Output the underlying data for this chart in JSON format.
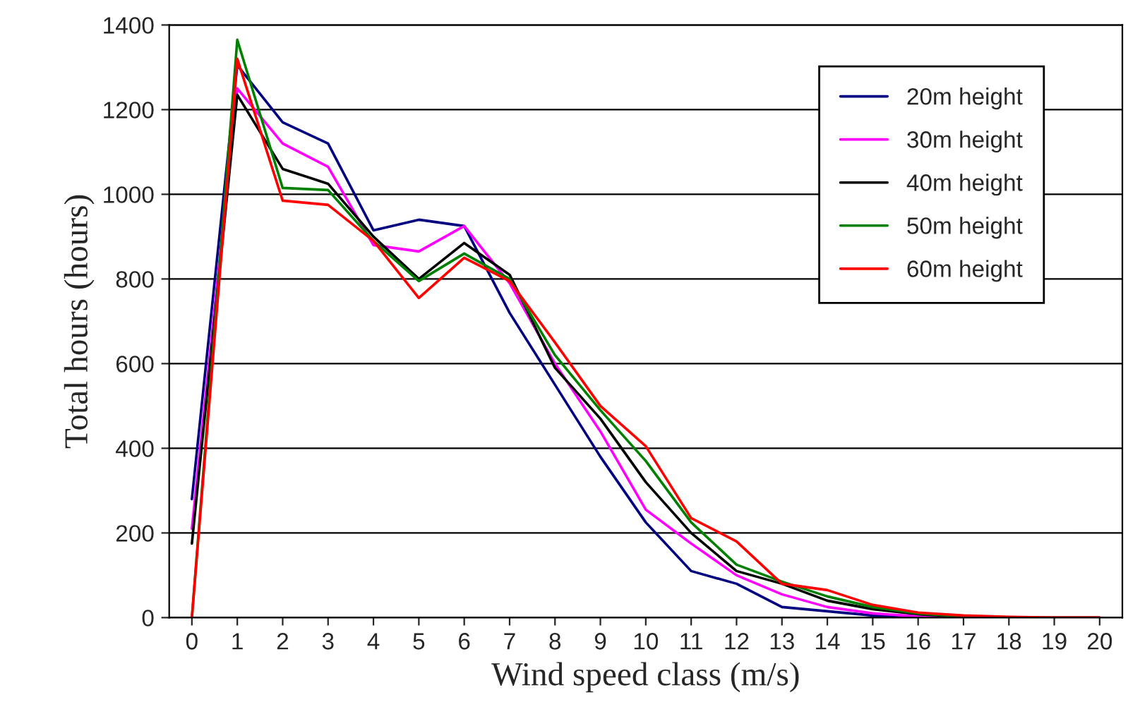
{
  "chart_data": {
    "type": "line",
    "xlabel": "Wind speed class (m/s)",
    "ylabel": "Total hours (hours)",
    "categories": [
      "0",
      "1",
      "2",
      "3",
      "4",
      "5",
      "6",
      "7",
      "8",
      "9",
      "10",
      "11",
      "12",
      "13",
      "14",
      "15",
      "16",
      "17",
      "18",
      "19",
      "20"
    ],
    "series": [
      {
        "name": "20m height",
        "color": "#000080",
        "values": [
          280,
          1305,
          1170,
          1120,
          915,
          940,
          925,
          720,
          550,
          380,
          225,
          110,
          80,
          25,
          15,
          5,
          0,
          0,
          null,
          null,
          null
        ]
      },
      {
        "name": "30m height",
        "color": "#ff00ff",
        "values": [
          210,
          1250,
          1120,
          1065,
          880,
          865,
          925,
          790,
          600,
          440,
          255,
          175,
          100,
          55,
          25,
          10,
          3,
          0,
          null,
          null,
          null
        ]
      },
      {
        "name": "40m height",
        "color": "#000000",
        "values": [
          175,
          1235,
          1060,
          1025,
          900,
          800,
          885,
          810,
          590,
          470,
          320,
          200,
          110,
          80,
          40,
          20,
          8,
          2,
          0,
          0,
          0
        ]
      },
      {
        "name": "50m height",
        "color": "#008000",
        "values": [
          0,
          1365,
          1015,
          1010,
          890,
          795,
          860,
          800,
          620,
          490,
          370,
          225,
          125,
          85,
          50,
          25,
          10,
          3,
          0,
          null,
          null
        ]
      },
      {
        "name": "60m height",
        "color": "#ff0000",
        "values": [
          0,
          1320,
          985,
          975,
          890,
          755,
          850,
          795,
          650,
          500,
          405,
          235,
          180,
          80,
          65,
          30,
          12,
          5,
          2,
          0,
          0
        ]
      }
    ],
    "ylim": [
      0,
      1400
    ],
    "yticks": [
      0,
      200,
      400,
      600,
      800,
      1000,
      1200,
      1400
    ],
    "grid": "y",
    "legend": "top right",
    "marker": "none",
    "line_style": "solid"
  }
}
